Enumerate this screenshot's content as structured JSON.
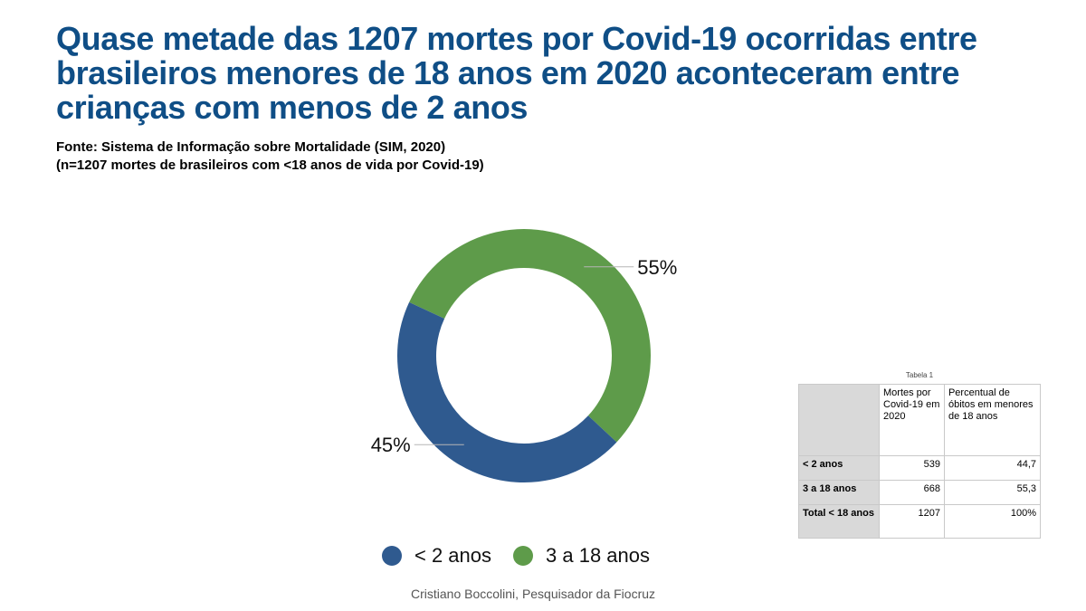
{
  "title": "Quase metade das 1207 mortes por Covid-19 ocorridas entre brasileiros menores de 18 anos em 2020 aconteceram entre crianças com menos de 2 anos",
  "source_line1": "Fonte: Sistema de Informação sobre Mortalidade (SIM, 2020)",
  "source_line2": "(n=1207 mortes de brasileiros com <18 anos de vida por Covid-19)",
  "credit": "Cristiano Boccolini, Pesquisador da Fiocruz",
  "colors": {
    "title": "#0f4e86",
    "blue": "#2f5a8f",
    "green": "#5e9b4a"
  },
  "chart_data": {
    "type": "pie",
    "variant": "donut",
    "categories": [
      "< 2 anos",
      "3 a 18 anos"
    ],
    "values": [
      45,
      55
    ],
    "labels": [
      "45%",
      "55%"
    ],
    "colors": [
      "#2f5a8f",
      "#5e9b4a"
    ],
    "legend": "bottom"
  },
  "table": {
    "caption": "Tabela 1",
    "headers": [
      "",
      "Mortes por Covid-19 em 2020",
      "Percentual de óbitos em menores de 18 anos"
    ],
    "rows": [
      {
        "label": "< 2 anos",
        "deaths": "539",
        "percent": "44,7"
      },
      {
        "label": "3 a 18 anos",
        "deaths": "668",
        "percent": "55,3"
      },
      {
        "label": "Total < 18 anos",
        "deaths": "1207",
        "percent": "100%"
      }
    ]
  }
}
